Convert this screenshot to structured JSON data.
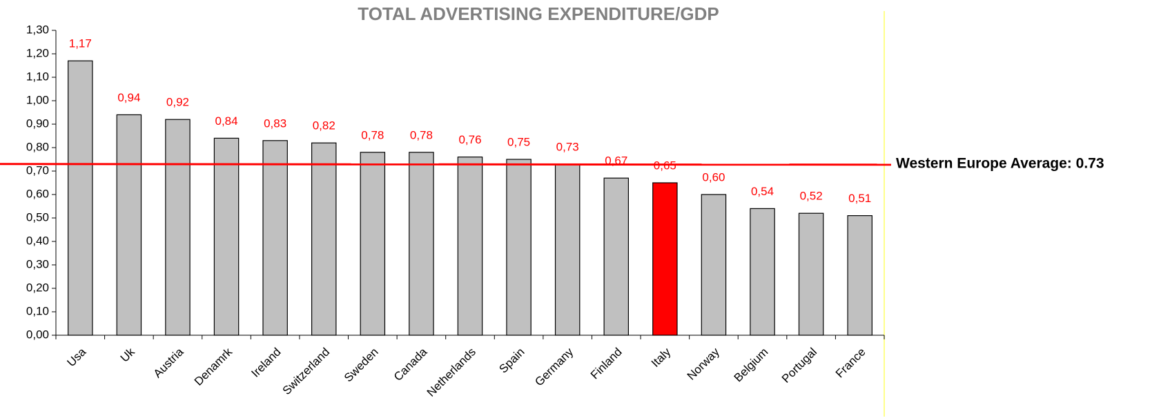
{
  "chart_data": {
    "type": "bar",
    "title": "TOTAL ADVERTISING EXPENDITURE/GDP",
    "categories": [
      "Usa",
      "Uk",
      "Austria",
      "Denamrk",
      "Ireland",
      "Switzerland",
      "Sweden",
      "Canada",
      "Netherlands",
      "Spain",
      "Germany",
      "Finland",
      "Italy",
      "Norway",
      "Belgium",
      "Portugal",
      "France"
    ],
    "values": [
      1.17,
      0.94,
      0.92,
      0.84,
      0.83,
      0.82,
      0.78,
      0.78,
      0.76,
      0.75,
      0.73,
      0.67,
      0.65,
      0.6,
      0.54,
      0.52,
      0.51
    ],
    "value_labels": [
      "1,17",
      "0,94",
      "0,92",
      "0,84",
      "0,83",
      "0,82",
      "0,78",
      "0,78",
      "0,76",
      "0,75",
      "0,73",
      "0,67",
      "0,65",
      "0,60",
      "0,54",
      "0,52",
      "0,51"
    ],
    "colors": [
      "#c0c0c0",
      "#c0c0c0",
      "#c0c0c0",
      "#c0c0c0",
      "#c0c0c0",
      "#c0c0c0",
      "#c0c0c0",
      "#c0c0c0",
      "#c0c0c0",
      "#c0c0c0",
      "#c0c0c0",
      "#c0c0c0",
      "#ff0000",
      "#c0c0c0",
      "#c0c0c0",
      "#c0c0c0",
      "#c0c0c0"
    ],
    "value_label_color": "#ff0000",
    "ylim": [
      0,
      1.3
    ],
    "yticks": [
      {
        "value": 0,
        "label": "0,00"
      },
      {
        "value": 0.1,
        "label": "0,10"
      },
      {
        "value": 0.2,
        "label": "0,20"
      },
      {
        "value": 0.3,
        "label": "0,30"
      },
      {
        "value": 0.4,
        "label": "0,40"
      },
      {
        "value": 0.5,
        "label": "0,50"
      },
      {
        "value": 0.6,
        "label": "0,60"
      },
      {
        "value": 0.7,
        "label": "0,70"
      },
      {
        "value": 0.8,
        "label": "0,80"
      },
      {
        "value": 0.9,
        "label": "0,90"
      },
      {
        "value": 1.0,
        "label": "1,00"
      },
      {
        "value": 1.1,
        "label": "1,10"
      },
      {
        "value": 1.2,
        "label": "1,20"
      },
      {
        "value": 1.3,
        "label": "1,30"
      }
    ],
    "grid": false,
    "reference_line": {
      "value": 0.73,
      "label": "Western Europe Average: 0.73",
      "color": "#ff0000"
    }
  }
}
